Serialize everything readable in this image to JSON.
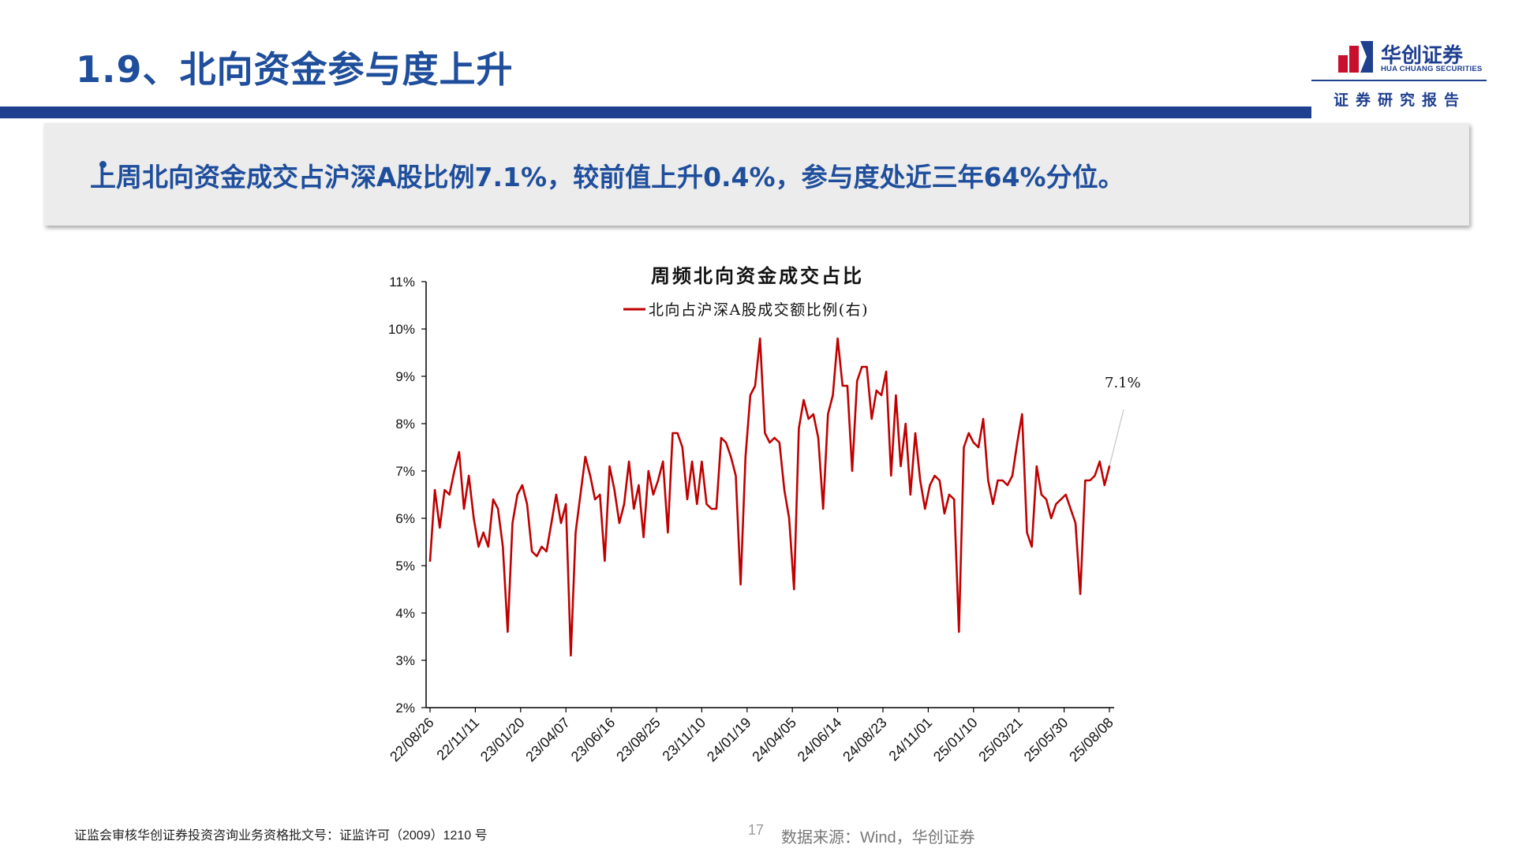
{
  "header": {
    "title": "1.9、北向资金参与度上升",
    "logo_cn": "华创证券",
    "logo_en": "HUA CHUANG SECURITIES",
    "report_tag": "证券研究报告",
    "logo_icon": "hua-chuang-logo-icon"
  },
  "summary": {
    "bullet": "•",
    "text": "上周北向资金成交占沪深A股比例7.1%，较前值上升0.4%，参与度处近三年64%分位。"
  },
  "chart_data": {
    "type": "line",
    "title": "周频北向资金成交占比",
    "legend_position": "top-center",
    "grid": false,
    "y_axis_side": "left",
    "ylim": [
      2,
      11
    ],
    "y_ticks": [
      "11%",
      "10%",
      "9%",
      "8%",
      "7%",
      "6%",
      "5%",
      "4%",
      "3%",
      "2%"
    ],
    "x_tick_labels": [
      "22/08/26",
      "22/11/11",
      "23/01/20",
      "23/04/07",
      "23/06/16",
      "23/08/25",
      "23/11/10",
      "24/01/19",
      "24/04/05",
      "24/06/14",
      "24/08/23",
      "24/11/01",
      "25/01/10",
      "25/03/21",
      "25/05/30",
      "25/08/08"
    ],
    "annotation": "7.1%",
    "series": [
      {
        "name": "北向占沪深A股成交额比例(右)",
        "color": "#c00000",
        "values": [
          5.1,
          6.6,
          5.8,
          6.6,
          6.5,
          7.0,
          7.4,
          6.2,
          6.9,
          6.0,
          5.4,
          5.7,
          5.4,
          6.4,
          6.2,
          5.4,
          3.6,
          5.9,
          6.5,
          6.7,
          6.3,
          5.3,
          5.2,
          5.4,
          5.3,
          5.9,
          6.5,
          5.9,
          6.3,
          3.1,
          5.7,
          6.5,
          7.3,
          6.9,
          6.4,
          6.5,
          5.1,
          7.1,
          6.6,
          5.9,
          6.3,
          7.2,
          6.2,
          6.7,
          5.6,
          7.0,
          6.5,
          6.8,
          7.2,
          5.7,
          7.8,
          7.8,
          7.5,
          6.4,
          7.2,
          6.3,
          7.2,
          6.3,
          6.2,
          6.2,
          7.7,
          7.6,
          7.3,
          6.9,
          4.6,
          7.3,
          8.6,
          8.8,
          9.8,
          7.8,
          7.6,
          7.7,
          7.6,
          6.6,
          6.0,
          4.5,
          7.9,
          8.5,
          8.1,
          8.2,
          7.7,
          6.2,
          8.2,
          8.6,
          9.8,
          8.8,
          8.8,
          7.0,
          8.9,
          9.2,
          9.2,
          8.1,
          8.7,
          8.6,
          9.1,
          6.9,
          8.6,
          7.1,
          8.0,
          6.5,
          7.8,
          6.8,
          6.2,
          6.7,
          6.9,
          6.8,
          6.1,
          6.5,
          6.4,
          3.6,
          7.5,
          7.8,
          7.6,
          7.5,
          8.1,
          6.8,
          6.3,
          6.8,
          6.8,
          6.7,
          6.9,
          7.6,
          8.2,
          5.7,
          5.4,
          7.1,
          6.5,
          6.4,
          6.0,
          6.3,
          6.4,
          6.5,
          6.2,
          5.9,
          4.4,
          6.8,
          6.8,
          6.9,
          7.2,
          6.7,
          7.1
        ]
      }
    ]
  },
  "footer": {
    "license": "证监会审核华创证券投资咨询业务资格批文号：证监许可（2009）1210 号",
    "page_number": "17",
    "source": "数据来源：Wind，华创证券"
  }
}
